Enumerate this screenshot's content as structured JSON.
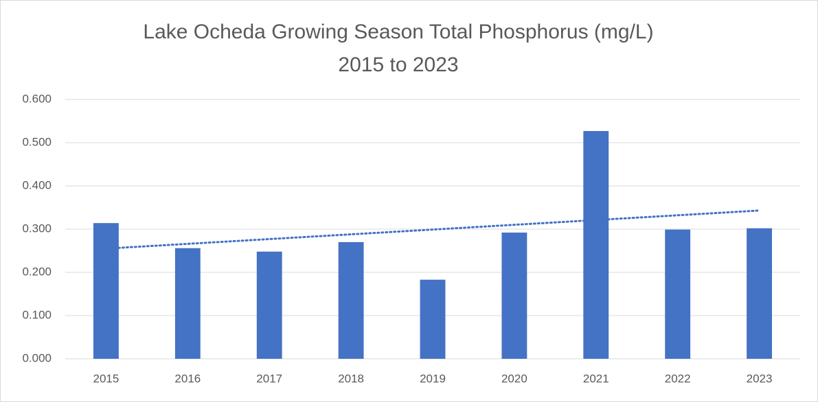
{
  "chart_data": {
    "type": "bar",
    "title": [
      "Lake Ocheda Growing Season Total Phosphorus (mg/L)",
      "2015 to 2023"
    ],
    "categories": [
      "2015",
      "2016",
      "2017",
      "2018",
      "2019",
      "2020",
      "2021",
      "2022",
      "2023"
    ],
    "values": [
      0.314,
      0.256,
      0.248,
      0.27,
      0.183,
      0.292,
      0.527,
      0.299,
      0.302
    ],
    "color": "#4472c4",
    "trendline": {
      "type": "linear",
      "color": "#4472c4"
    },
    "ylim": [
      0,
      0.6
    ],
    "yticks": [
      {
        "value": 0,
        "label": "0.000"
      },
      {
        "value": 0.1,
        "label": "0.100"
      },
      {
        "value": 0.2,
        "label": "0.200"
      },
      {
        "value": 0.3,
        "label": "0.300"
      },
      {
        "value": 0.4,
        "label": "0.400"
      },
      {
        "value": 0.5,
        "label": "0.500"
      },
      {
        "value": 0.6,
        "label": "0.600"
      }
    ],
    "grid": true
  }
}
